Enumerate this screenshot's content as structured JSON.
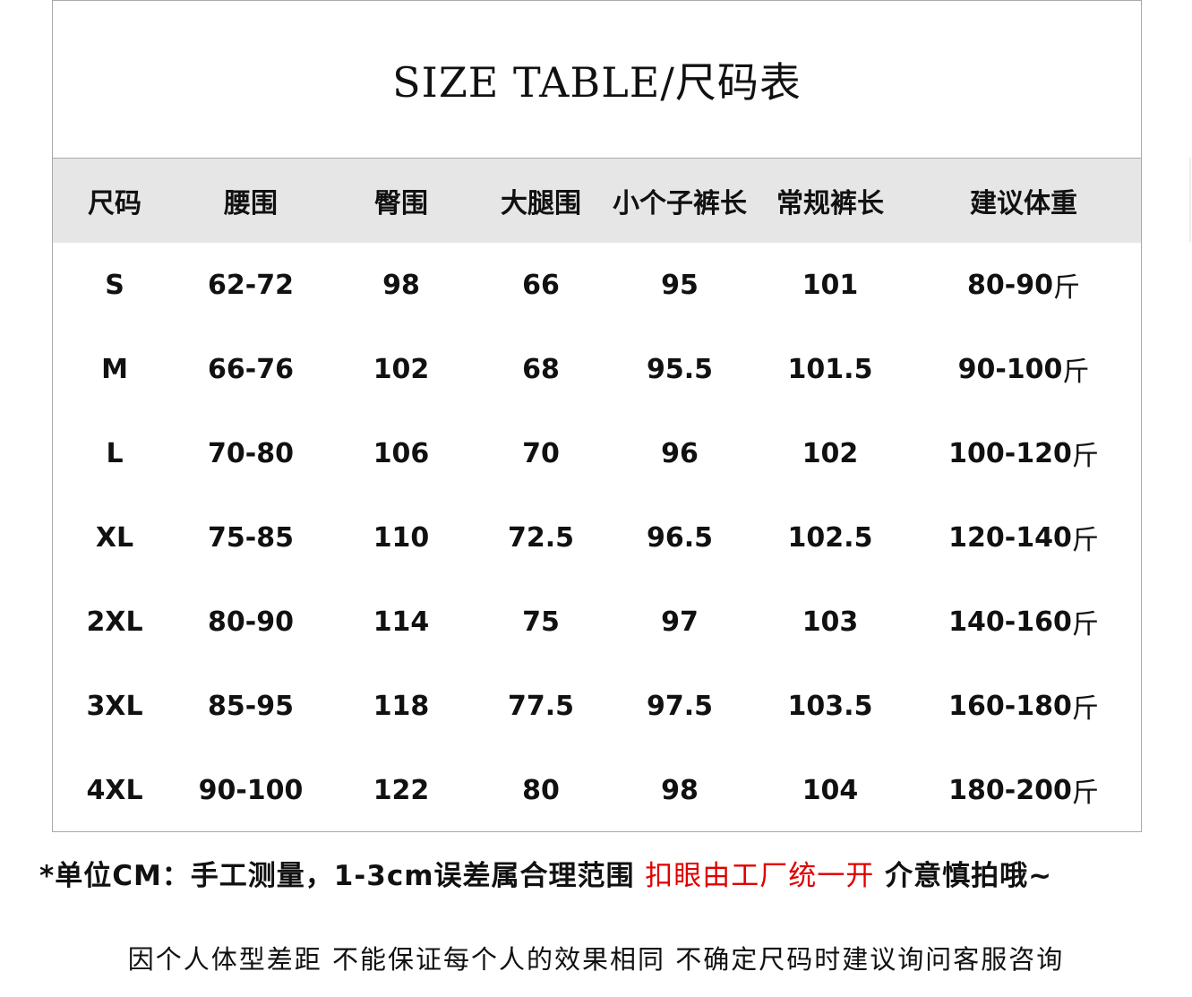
{
  "title": "SIZE TABLE/尺码表",
  "headers": [
    "尺码",
    "腰围",
    "臀围",
    "大腿围",
    "小个子裤长",
    "常规裤长",
    "建议体重"
  ],
  "weight_unit": "斤",
  "rows": [
    [
      "S",
      "62-72",
      "98",
      "66",
      "95",
      "101",
      "80-90"
    ],
    [
      "M",
      "66-76",
      "102",
      "68",
      "95.5",
      "101.5",
      "90-100"
    ],
    [
      "L",
      "70-80",
      "106",
      "70",
      "96",
      "102",
      "100-120"
    ],
    [
      "XL",
      "75-85",
      "110",
      "72.5",
      "96.5",
      "102.5",
      "120-140"
    ],
    [
      "2XL",
      "80-90",
      "114",
      "75",
      "97",
      "103",
      "140-160"
    ],
    [
      "3XL",
      "85-95",
      "118",
      "77.5",
      "97.5",
      "103.5",
      "160-180"
    ],
    [
      "4XL",
      "90-100",
      "122",
      "80",
      "98",
      "104",
      "180-200"
    ]
  ],
  "notes": {
    "line1_a": "*单位CM：手工测量，1-3cm误差属合理范围 ",
    "line1_red": "扣眼由工厂统一开",
    "line1_b": " 介意慎拍哦~",
    "line2": "因个人体型差距 不能保证每个人的效果相同 不确定尺码时建议询问客服咨询"
  },
  "colors": {
    "header_bg": "#e6e6e6",
    "highlight": "#e00000",
    "border": "#aaaaaa"
  }
}
